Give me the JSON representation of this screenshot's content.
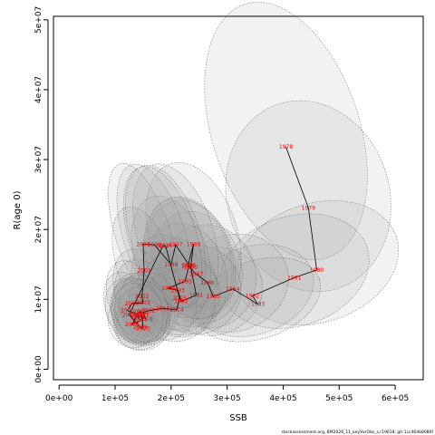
{
  "chart_data": {
    "type": "scatter",
    "title": "",
    "xlabel": "SSB",
    "ylabel": "R(age 0)",
    "xlim": [
      -10000,
      650000
    ],
    "ylim": [
      -1500000,
      50500000
    ],
    "xticks": [
      0,
      100000,
      200000,
      300000,
      400000,
      500000,
      600000
    ],
    "xtick_labels": [
      "0e+00",
      "1e+05",
      "2e+05",
      "3e+05",
      "4e+05",
      "5e+05",
      "6e+05"
    ],
    "yticks": [
      0,
      10000000,
      20000000,
      30000000,
      40000000,
      50000000
    ],
    "ytick_labels": [
      "0e+00",
      "1e+07",
      "2e+07",
      "3e+07",
      "4e+07",
      "5e+07"
    ],
    "grid": false,
    "trajectory": [
      {
        "label": "1978",
        "x": 405000,
        "y": 31800000
      },
      {
        "label": "1979",
        "x": 445000,
        "y": 23100000
      },
      {
        "label": "1980",
        "x": 460000,
        "y": 14200000
      },
      {
        "label": "1981",
        "x": 420000,
        "y": 13100000
      },
      {
        "label": "1982",
        "x": 345000,
        "y": 10500000
      },
      {
        "label": "1983",
        "x": 355000,
        "y": 9300000
      },
      {
        "label": "1984",
        "x": 310000,
        "y": 11500000
      },
      {
        "label": "1985",
        "x": 275000,
        "y": 10400000
      },
      {
        "label": "1986",
        "x": 265000,
        "y": 12400000
      },
      {
        "label": "1987",
        "x": 245000,
        "y": 13600000
      },
      {
        "label": "1988",
        "x": 230000,
        "y": 14800000
      },
      {
        "label": "1989",
        "x": 240000,
        "y": 17900000
      },
      {
        "label": "1990",
        "x": 235000,
        "y": 14600000
      },
      {
        "label": "1991",
        "x": 245000,
        "y": 10600000
      },
      {
        "label": "1992",
        "x": 218000,
        "y": 9700000
      },
      {
        "label": "1993",
        "x": 212000,
        "y": 11300000
      },
      {
        "label": "1994",
        "x": 195000,
        "y": 11600000
      },
      {
        "label": "1995",
        "x": 225000,
        "y": 12600000
      },
      {
        "label": "1996",
        "x": 232000,
        "y": 14900000
      },
      {
        "label": "1997",
        "x": 208000,
        "y": 17800000
      },
      {
        "label": "1998",
        "x": 200000,
        "y": 15000000
      },
      {
        "label": "1999",
        "x": 170000,
        "y": 17800000
      },
      {
        "label": "2000",
        "x": 150000,
        "y": 17900000
      },
      {
        "label": "2001",
        "x": 152000,
        "y": 14100000
      },
      {
        "label": "2002",
        "x": 148000,
        "y": 10400000
      },
      {
        "label": "2003",
        "x": 150000,
        "y": 9500000
      },
      {
        "label": "2004",
        "x": 130000,
        "y": 9400000
      },
      {
        "label": "2005",
        "x": 122000,
        "y": 8400000
      },
      {
        "label": "2006",
        "x": 138000,
        "y": 7900000
      },
      {
        "label": "2007",
        "x": 145000,
        "y": 7000000
      },
      {
        "label": "2008",
        "x": 130000,
        "y": 6400000
      },
      {
        "label": "2009",
        "x": 140000,
        "y": 7800000
      },
      {
        "label": "2010",
        "x": 155000,
        "y": 7200000
      },
      {
        "label": "2011",
        "x": 150000,
        "y": 8100000
      },
      {
        "label": "2012",
        "x": 160000,
        "y": 8400000
      },
      {
        "label": "2013",
        "x": 185000,
        "y": 8700000
      },
      {
        "label": "2014",
        "x": 210000,
        "y": 8500000
      },
      {
        "label": "2015",
        "x": 215000,
        "y": 10200000
      },
      {
        "label": "2016",
        "x": 190000,
        "y": 17700000
      },
      {
        "label": "2017",
        "x": 185000,
        "y": 17600000
      },
      {
        "label": "2018",
        "x": 125000,
        "y": 7800000
      },
      {
        "label": "2019",
        "x": 145000,
        "y": 6000000
      },
      {
        "label": "2020",
        "x": 150000,
        "y": 5800000
      },
      {
        "label": "2021",
        "x": 148000,
        "y": 7700000
      },
      {
        "label": "2022",
        "x": 145000,
        "y": 8300000
      },
      {
        "label": "2023",
        "x": 140000,
        "y": 7400000
      }
    ],
    "ellipse_shading": {
      "fill": "#9a9a9a",
      "stroke": "#666666"
    }
  },
  "footnote": "stockassessment.org, BM2026_11_keyVarObs_s,r19618, git:1cc464b8086f"
}
